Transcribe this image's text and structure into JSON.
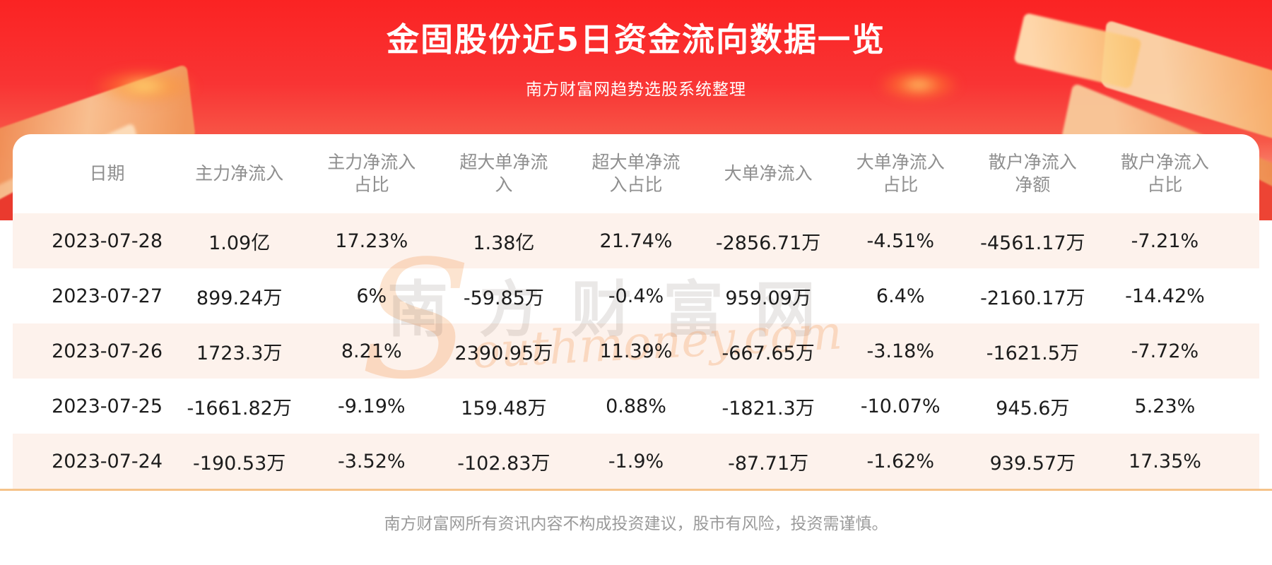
{
  "header": {
    "title": "金固股份近5日资金流向数据一览",
    "subtitle": "南方财富网趋势选股系统整理"
  },
  "chart_data": {
    "type": "table",
    "title": "金固股份近5日资金流向数据一览",
    "subtitle": "南方财富网趋势选股系统整理",
    "columns": [
      "日期",
      "主力净流入",
      "主力净流入占比",
      "超大单净流入",
      "超大单净流入占比",
      "大单净流入",
      "大单净流入占比",
      "散户净流入净额",
      "散户净流入占比"
    ],
    "rows": [
      [
        "2023-07-28",
        "1.09亿",
        "17.23%",
        "1.38亿",
        "21.74%",
        "-2856.71万",
        "-4.51%",
        "-4561.17万",
        "-7.21%"
      ],
      [
        "2023-07-27",
        "899.24万",
        "6%",
        "-59.85万",
        "-0.4%",
        "959.09万",
        "6.4%",
        "-2160.17万",
        "-14.42%"
      ],
      [
        "2023-07-26",
        "1723.3万",
        "8.21%",
        "2390.95万",
        "11.39%",
        "-667.65万",
        "-3.18%",
        "-1621.5万",
        "-7.72%"
      ],
      [
        "2023-07-25",
        "-1661.82万",
        "-9.19%",
        "159.48万",
        "0.88%",
        "-1821.3万",
        "-10.07%",
        "945.6万",
        "5.23%"
      ],
      [
        "2023-07-24",
        "-190.53万",
        "-3.52%",
        "-102.83万",
        "-1.9%",
        "-87.71万",
        "-1.62%",
        "939.57万",
        "17.35%"
      ]
    ]
  },
  "watermark": {
    "cn": "南方财富网",
    "initial": "S",
    "script": "outhmoney.com"
  },
  "footer": {
    "disclaimer": "南方财富网所有资讯内容不构成投资建议，股市有风险，投资需谨慎。"
  },
  "colors": {
    "banner_red_top": "#fa2323",
    "banner_red_mid": "#f75848",
    "row_stripe": "#fdf2ec",
    "divider_orange": "#f5c38a",
    "header_text": "#8f8f8f",
    "cell_text": "#1c1c1c",
    "title_text": "#ffffff"
  }
}
